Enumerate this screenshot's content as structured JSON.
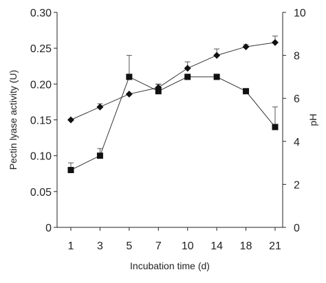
{
  "chart_data": {
    "type": "line",
    "xlabel": "Incubation time (d)",
    "categories": [
      "1",
      "3",
      "5",
      "7",
      "10",
      "14",
      "18",
      "21"
    ],
    "y_left": {
      "label": "Pectin lyase activity (U)",
      "lim": [
        0,
        0.3
      ],
      "ticks": [
        "0",
        "0.05",
        "0.10",
        "0.15",
        "0.20",
        "0.25",
        "0.30"
      ]
    },
    "y_right": {
      "label": "pH",
      "lim": [
        0,
        10
      ],
      "ticks": [
        "0",
        "2",
        "4",
        "6",
        "8",
        "10"
      ]
    },
    "series": [
      {
        "axis": "left",
        "marker": "square",
        "values": [
          0.08,
          0.1,
          0.21,
          0.19,
          0.21,
          0.21,
          0.19,
          0.14
        ],
        "error_upper": [
          0.01,
          0.01,
          0.03,
          0.01,
          0.0,
          0.0,
          0.0,
          0.028
        ]
      },
      {
        "axis": "right",
        "marker": "diamond",
        "values": [
          5.0,
          5.6,
          6.2,
          6.5,
          7.4,
          8.0,
          8.4,
          8.6
        ],
        "error_upper": [
          0.0,
          0.15,
          0.0,
          0.15,
          0.3,
          0.3,
          0.1,
          0.3
        ]
      }
    ],
    "grid": false,
    "legend": "none"
  }
}
